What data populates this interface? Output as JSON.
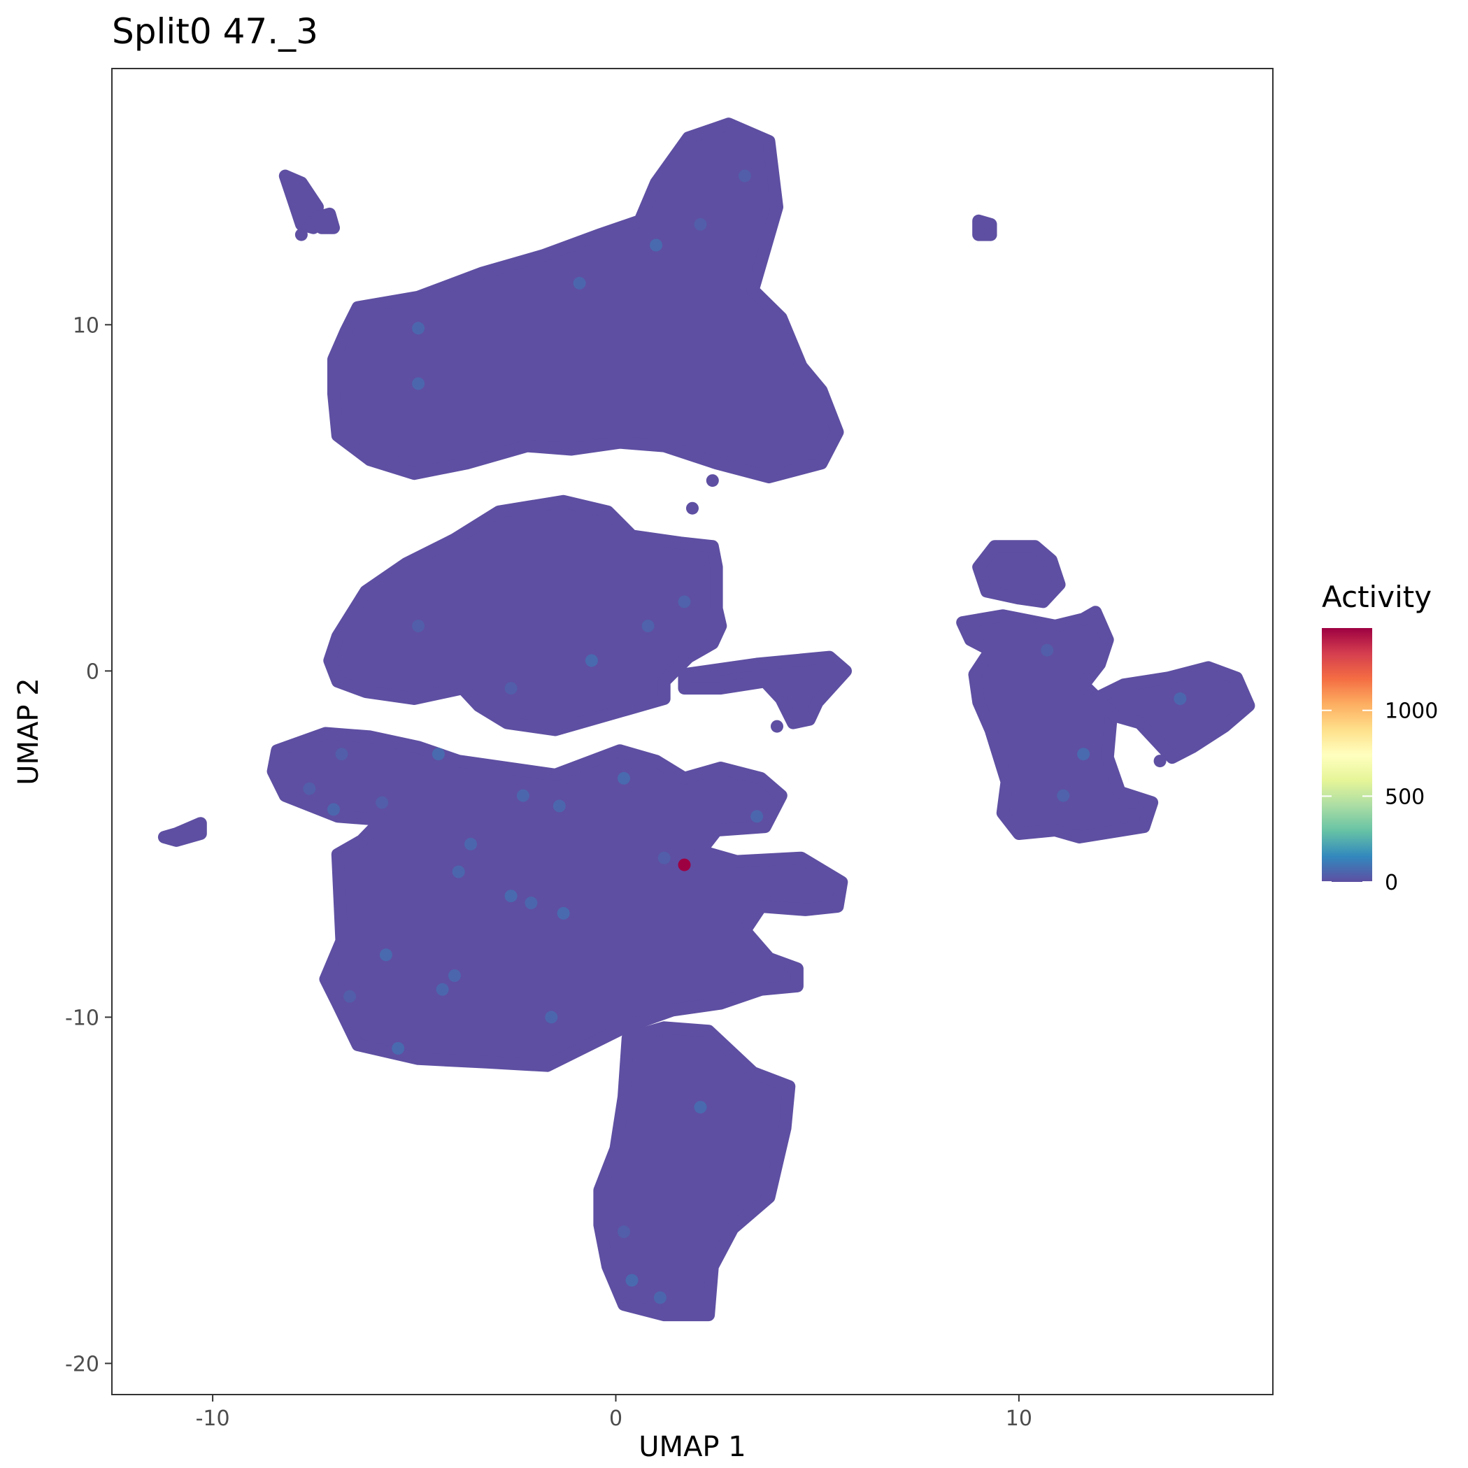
{
  "chart_data": {
    "type": "scatter",
    "title": "Split0 47._3",
    "xlabel": "UMAP 1",
    "ylabel": "UMAP 2",
    "xlim": [
      -12.5,
      16.3
    ],
    "ylim": [
      -20.9,
      17.4
    ],
    "x_ticks": [
      {
        "value": -10,
        "label": "-10"
      },
      {
        "value": 0,
        "label": "0"
      },
      {
        "value": 10,
        "label": "10"
      }
    ],
    "y_ticks": [
      {
        "value": 10,
        "label": "10"
      },
      {
        "value": 0,
        "label": "0"
      },
      {
        "value": -10,
        "label": "-10"
      },
      {
        "value": -20,
        "label": "-20"
      }
    ],
    "grid": false,
    "legend": {
      "title": "Activity",
      "placement": "right",
      "range": [
        0,
        1480
      ],
      "ticks": [
        {
          "value": 0,
          "label": "0"
        },
        {
          "value": 500,
          "label": "500"
        },
        {
          "value": 1000,
          "label": "1000"
        }
      ],
      "colors": [
        "#5E4FA2",
        "#3288BD",
        "#66C2A5",
        "#ABDDA4",
        "#E6F598",
        "#FFFFBF",
        "#FEE08B",
        "#FDAE61",
        "#F46D43",
        "#D53E4F",
        "#9E0142"
      ]
    },
    "base_color": "#5E4FA2",
    "clusters": [
      {
        "id": "top-main",
        "polygon": [
          [
            -6.4,
            10.5
          ],
          [
            -4.9,
            10.8
          ],
          [
            -3.3,
            11.5
          ],
          [
            -1.8,
            12.0
          ],
          [
            -0.4,
            12.6
          ],
          [
            0.6,
            13.0
          ],
          [
            1.0,
            14.1
          ],
          [
            1.8,
            15.4
          ],
          [
            2.8,
            15.8
          ],
          [
            3.8,
            15.3
          ],
          [
            4.0,
            13.4
          ],
          [
            3.6,
            11.8
          ],
          [
            3.4,
            11.0
          ],
          [
            4.1,
            10.2
          ],
          [
            4.6,
            8.8
          ],
          [
            5.1,
            8.1
          ],
          [
            5.5,
            6.9
          ],
          [
            5.1,
            6.0
          ],
          [
            3.8,
            5.6
          ],
          [
            2.5,
            6.0
          ],
          [
            1.2,
            6.5
          ],
          [
            0.1,
            6.6
          ],
          [
            -1.1,
            6.4
          ],
          [
            -2.2,
            6.5
          ],
          [
            -3.7,
            6.0
          ],
          [
            -5.0,
            5.7
          ],
          [
            -6.1,
            6.1
          ],
          [
            -6.9,
            6.8
          ],
          [
            -7.0,
            8.0
          ],
          [
            -7.0,
            9.0
          ],
          [
            -6.7,
            9.8
          ]
        ]
      },
      {
        "id": "top-left-small",
        "polygon": [
          [
            -8.2,
            14.3
          ],
          [
            -7.8,
            14.1
          ],
          [
            -7.4,
            13.4
          ],
          [
            -7.5,
            12.8
          ],
          [
            -7.8,
            12.9
          ],
          [
            -8.0,
            13.6
          ]
        ]
      },
      {
        "id": "top-left-dot",
        "polygon": [
          [
            -7.4,
            13.1
          ],
          [
            -7.1,
            13.2
          ],
          [
            -7.0,
            12.8
          ],
          [
            -7.3,
            12.8
          ]
        ]
      },
      {
        "id": "top-right-small",
        "polygon": [
          [
            9.0,
            13.0
          ],
          [
            9.3,
            12.9
          ],
          [
            9.3,
            12.6
          ],
          [
            9.0,
            12.6
          ]
        ]
      },
      {
        "id": "mid-main",
        "polygon": [
          [
            -6.9,
            1.0
          ],
          [
            -6.2,
            2.3
          ],
          [
            -5.2,
            3.1
          ],
          [
            -4.0,
            3.8
          ],
          [
            -2.9,
            4.6
          ],
          [
            -1.3,
            4.9
          ],
          [
            -0.2,
            4.6
          ],
          [
            0.4,
            3.9
          ],
          [
            1.6,
            3.7
          ],
          [
            2.4,
            3.6
          ],
          [
            2.5,
            3.0
          ],
          [
            2.5,
            1.8
          ],
          [
            2.6,
            1.3
          ],
          [
            2.4,
            0.8
          ],
          [
            1.8,
            0.4
          ],
          [
            1.2,
            -0.3
          ],
          [
            1.2,
            -0.8
          ],
          [
            0.3,
            -1.1
          ],
          [
            -1.5,
            -1.7
          ],
          [
            -2.7,
            -1.5
          ],
          [
            -3.4,
            -1.0
          ],
          [
            -3.8,
            -0.5
          ],
          [
            -5.0,
            -0.8
          ],
          [
            -6.2,
            -0.6
          ],
          [
            -6.9,
            -0.3
          ],
          [
            -7.1,
            0.3
          ]
        ]
      },
      {
        "id": "mid-arm",
        "polygon": [
          [
            1.7,
            -0.1
          ],
          [
            3.5,
            0.2
          ],
          [
            5.3,
            0.4
          ],
          [
            5.7,
            0.0
          ],
          [
            5.0,
            -0.9
          ],
          [
            4.8,
            -1.4
          ],
          [
            4.4,
            -1.5
          ],
          [
            4.1,
            -0.8
          ],
          [
            3.7,
            -0.3
          ],
          [
            2.6,
            -0.5
          ],
          [
            1.7,
            -0.5
          ]
        ]
      },
      {
        "id": "lower-main",
        "polygon": [
          [
            -8.4,
            -2.3
          ],
          [
            -7.2,
            -1.8
          ],
          [
            -6.1,
            -1.9
          ],
          [
            -4.9,
            -2.2
          ],
          [
            -3.9,
            -2.6
          ],
          [
            -2.7,
            -2.8
          ],
          [
            -1.5,
            -3.0
          ],
          [
            0.1,
            -2.3
          ],
          [
            1.0,
            -2.6
          ],
          [
            1.7,
            -3.1
          ],
          [
            2.6,
            -2.8
          ],
          [
            3.6,
            -3.1
          ],
          [
            4.1,
            -3.6
          ],
          [
            3.7,
            -4.5
          ],
          [
            2.5,
            -4.6
          ],
          [
            2.1,
            -5.2
          ],
          [
            3.0,
            -5.5
          ],
          [
            4.6,
            -5.4
          ],
          [
            5.6,
            -6.1
          ],
          [
            5.5,
            -6.8
          ],
          [
            4.7,
            -6.9
          ],
          [
            3.6,
            -6.8
          ],
          [
            3.2,
            -7.5
          ],
          [
            3.8,
            -8.3
          ],
          [
            4.5,
            -8.6
          ],
          [
            4.5,
            -9.1
          ],
          [
            3.6,
            -9.2
          ],
          [
            2.6,
            -9.6
          ],
          [
            1.4,
            -9.8
          ],
          [
            0.2,
            -10.3
          ],
          [
            -1.7,
            -11.4
          ],
          [
            -3.2,
            -11.3
          ],
          [
            -4.9,
            -11.2
          ],
          [
            -6.4,
            -10.8
          ],
          [
            -6.9,
            -9.6
          ],
          [
            -7.2,
            -8.9
          ],
          [
            -6.8,
            -7.8
          ],
          [
            -6.9,
            -5.3
          ],
          [
            -6.3,
            -4.9
          ],
          [
            -5.8,
            -4.3
          ],
          [
            -6.9,
            -4.2
          ],
          [
            -8.2,
            -3.6
          ],
          [
            -8.5,
            -2.9
          ]
        ]
      },
      {
        "id": "lower-tail",
        "polygon": [
          [
            -11.2,
            -4.8
          ],
          [
            -10.9,
            -4.7
          ],
          [
            -10.3,
            -4.4
          ],
          [
            -10.3,
            -4.7
          ],
          [
            -10.9,
            -4.9
          ]
        ]
      },
      {
        "id": "bottom",
        "polygon": [
          [
            0.3,
            -10.6
          ],
          [
            1.2,
            -10.3
          ],
          [
            2.3,
            -10.4
          ],
          [
            3.4,
            -11.6
          ],
          [
            4.3,
            -12.0
          ],
          [
            4.2,
            -13.2
          ],
          [
            3.8,
            -15.2
          ],
          [
            2.9,
            -16.1
          ],
          [
            2.4,
            -17.2
          ],
          [
            2.3,
            -18.6
          ],
          [
            1.2,
            -18.6
          ],
          [
            0.2,
            -18.3
          ],
          [
            -0.2,
            -17.2
          ],
          [
            -0.4,
            -16.0
          ],
          [
            -0.4,
            -15.0
          ],
          [
            0.0,
            -13.8
          ],
          [
            0.2,
            -12.3
          ]
        ]
      },
      {
        "id": "right-top",
        "polygon": [
          [
            9.0,
            3.0
          ],
          [
            9.4,
            3.6
          ],
          [
            10.4,
            3.6
          ],
          [
            10.8,
            3.2
          ],
          [
            11.0,
            2.5
          ],
          [
            10.6,
            2.0
          ],
          [
            10.0,
            2.1
          ],
          [
            9.2,
            2.3
          ]
        ]
      },
      {
        "id": "right-main",
        "polygon": [
          [
            8.6,
            1.4
          ],
          [
            9.6,
            1.6
          ],
          [
            10.9,
            1.3
          ],
          [
            11.6,
            1.5
          ],
          [
            11.9,
            1.7
          ],
          [
            12.2,
            0.9
          ],
          [
            12.0,
            0.2
          ],
          [
            11.6,
            -0.4
          ],
          [
            12.3,
            -1.2
          ],
          [
            12.2,
            -2.5
          ],
          [
            12.5,
            -3.5
          ],
          [
            13.3,
            -3.8
          ],
          [
            13.1,
            -4.5
          ],
          [
            11.5,
            -4.8
          ],
          [
            10.9,
            -4.6
          ],
          [
            10.0,
            -4.7
          ],
          [
            9.6,
            -4.1
          ],
          [
            9.7,
            -3.2
          ],
          [
            9.3,
            -1.7
          ],
          [
            9.0,
            -0.9
          ],
          [
            8.9,
            -0.1
          ],
          [
            9.3,
            0.6
          ],
          [
            8.8,
            0.9
          ]
        ]
      },
      {
        "id": "right-arm",
        "polygon": [
          [
            11.9,
            -0.8
          ],
          [
            12.6,
            -0.4
          ],
          [
            13.7,
            -0.2
          ],
          [
            14.7,
            0.1
          ],
          [
            15.4,
            -0.2
          ],
          [
            15.7,
            -1.0
          ],
          [
            15.1,
            -1.6
          ],
          [
            14.3,
            -2.2
          ],
          [
            13.8,
            -2.5
          ],
          [
            13.0,
            -1.5
          ],
          [
            12.4,
            -1.3
          ]
        ]
      }
    ],
    "points": [
      {
        "x": -7.8,
        "y": 12.6,
        "v": 0
      },
      {
        "x": 9.3,
        "y": 12.6,
        "v": 0
      },
      {
        "x": 1.0,
        "y": 12.3,
        "v": 70
      },
      {
        "x": 3.2,
        "y": 14.3,
        "v": 40
      },
      {
        "x": -0.9,
        "y": 11.2,
        "v": 60
      },
      {
        "x": 2.1,
        "y": 12.9,
        "v": 40
      },
      {
        "x": -4.9,
        "y": 9.9,
        "v": 60
      },
      {
        "x": -4.9,
        "y": 8.3,
        "v": 60
      },
      {
        "x": 2.4,
        "y": 5.5,
        "v": 0
      },
      {
        "x": 1.9,
        "y": 4.7,
        "v": 0
      },
      {
        "x": -0.6,
        "y": 0.3,
        "v": 70
      },
      {
        "x": 0.8,
        "y": 1.3,
        "v": 50
      },
      {
        "x": 1.7,
        "y": 2.0,
        "v": 50
      },
      {
        "x": -4.9,
        "y": 1.3,
        "v": 40
      },
      {
        "x": -2.6,
        "y": -0.5,
        "v": 40
      },
      {
        "x": 4.0,
        "y": -1.6,
        "v": 0
      },
      {
        "x": -4.4,
        "y": -2.4,
        "v": 70
      },
      {
        "x": -6.8,
        "y": -2.4,
        "v": 40
      },
      {
        "x": -7.6,
        "y": -3.4,
        "v": 40
      },
      {
        "x": -7.0,
        "y": -4.0,
        "v": 60
      },
      {
        "x": -5.8,
        "y": -3.8,
        "v": 40
      },
      {
        "x": -3.6,
        "y": -5.0,
        "v": 60
      },
      {
        "x": -2.3,
        "y": -3.6,
        "v": 60
      },
      {
        "x": -1.4,
        "y": -3.9,
        "v": 60
      },
      {
        "x": 0.2,
        "y": -3.1,
        "v": 70
      },
      {
        "x": 3.5,
        "y": -4.2,
        "v": 60
      },
      {
        "x": 1.2,
        "y": -5.4,
        "v": 40
      },
      {
        "x": 1.7,
        "y": -5.6,
        "v": 1480
      },
      {
        "x": -3.9,
        "y": -5.8,
        "v": 60
      },
      {
        "x": -2.6,
        "y": -6.5,
        "v": 70
      },
      {
        "x": -2.1,
        "y": -6.7,
        "v": 60
      },
      {
        "x": -1.3,
        "y": -7.0,
        "v": 70
      },
      {
        "x": -5.7,
        "y": -8.2,
        "v": 70
      },
      {
        "x": -4.0,
        "y": -8.8,
        "v": 60
      },
      {
        "x": -4.3,
        "y": -9.2,
        "v": 60
      },
      {
        "x": -6.6,
        "y": -9.4,
        "v": 40
      },
      {
        "x": -1.6,
        "y": -10.0,
        "v": 60
      },
      {
        "x": -5.4,
        "y": -10.9,
        "v": 70
      },
      {
        "x": 2.1,
        "y": -12.6,
        "v": 70
      },
      {
        "x": 0.4,
        "y": -17.6,
        "v": 70
      },
      {
        "x": 1.1,
        "y": -18.1,
        "v": 60
      },
      {
        "x": 0.2,
        "y": -16.2,
        "v": 40
      },
      {
        "x": 11.1,
        "y": -3.6,
        "v": 50
      },
      {
        "x": 11.6,
        "y": -2.4,
        "v": 70
      },
      {
        "x": 14.0,
        "y": -0.8,
        "v": 60
      },
      {
        "x": 10.7,
        "y": 0.6,
        "v": 40
      },
      {
        "x": 13.5,
        "y": -2.6,
        "v": 0
      },
      {
        "x": 12.8,
        "y": -3.8,
        "v": 0
      }
    ]
  }
}
